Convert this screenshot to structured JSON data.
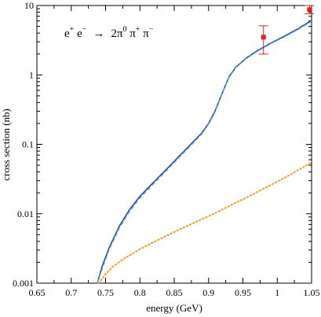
{
  "chart_data": {
    "type": "line",
    "xlabel": "energy (GeV)",
    "ylabel": "cross section (nb)",
    "xlim": [
      0.65,
      1.05
    ],
    "ylim": [
      0.001,
      10
    ],
    "yscale": "log",
    "grid": false,
    "annotation": {
      "process_lhs": "e",
      "process_lhs_sup1": "+",
      "process_lhs_mid": " e",
      "process_lhs_sup2": "−",
      "arrow": "→",
      "process_rhs": "2π",
      "process_rhs_sup1": "0",
      "process_rhs_pi2": " π",
      "process_rhs_sup2": "+",
      "process_rhs_pi3": " π",
      "process_rhs_sup3": "−"
    },
    "x_ticks": [
      "0.65",
      "0.7",
      "0.75",
      "0.8",
      "0.85",
      "0.9",
      "0.95",
      "1",
      "1.05"
    ],
    "y_ticks": [
      "0.001",
      "0.01",
      "0.1",
      "1",
      "10"
    ],
    "series": [
      {
        "style": "solid",
        "color": "#1f4e99",
        "x": [
          0.738,
          0.745,
          0.755,
          0.77,
          0.785,
          0.8,
          0.82,
          0.84,
          0.86,
          0.875,
          0.89,
          0.9,
          0.91,
          0.92,
          0.93,
          0.94,
          0.955,
          0.97,
          0.99,
          1.01,
          1.03,
          1.05
        ],
        "y": [
          0.001,
          0.00175,
          0.0032,
          0.0066,
          0.0115,
          0.0178,
          0.0285,
          0.045,
          0.072,
          0.102,
          0.145,
          0.2,
          0.31,
          0.55,
          0.95,
          1.3,
          1.75,
          2.2,
          2.85,
          3.6,
          4.6,
          6.1
        ]
      },
      {
        "style": "dashed",
        "color": "#6fa0d8",
        "x": [
          0.738,
          0.745,
          0.755,
          0.77,
          0.785,
          0.8,
          0.82,
          0.84,
          0.86,
          0.875,
          0.89,
          0.9,
          0.91,
          0.92,
          0.93,
          0.94,
          0.955,
          0.97,
          0.99,
          1.01,
          1.03,
          1.05
        ],
        "y": [
          0.001,
          0.0016,
          0.003,
          0.0062,
          0.0108,
          0.0168,
          0.027,
          0.043,
          0.069,
          0.098,
          0.14,
          0.195,
          0.3,
          0.54,
          0.93,
          1.28,
          1.72,
          2.15,
          2.8,
          3.5,
          4.5,
          5.9
        ]
      },
      {
        "style": "dotted",
        "color": "#f0a020",
        "x": [
          0.74,
          0.75,
          0.76,
          0.775,
          0.79,
          0.8,
          0.82,
          0.84,
          0.86,
          0.88,
          0.9,
          0.92,
          0.94,
          0.96,
          0.98,
          1.0,
          1.02,
          1.05
        ],
        "y": [
          0.001,
          0.00135,
          0.0017,
          0.0022,
          0.0027,
          0.0031,
          0.0039,
          0.0049,
          0.0061,
          0.0075,
          0.0092,
          0.0115,
          0.0145,
          0.018,
          0.023,
          0.029,
          0.037,
          0.055
        ]
      }
    ],
    "points": [
      {
        "x": 0.98,
        "y": 3.5,
        "yerr_low": 2.0,
        "yerr_high": 5.1,
        "color": "#dd2222"
      },
      {
        "x": 1.047,
        "y": 8.7,
        "yerr_low": 7.6,
        "yerr_high": 10.0,
        "color": "#dd2222"
      }
    ]
  }
}
